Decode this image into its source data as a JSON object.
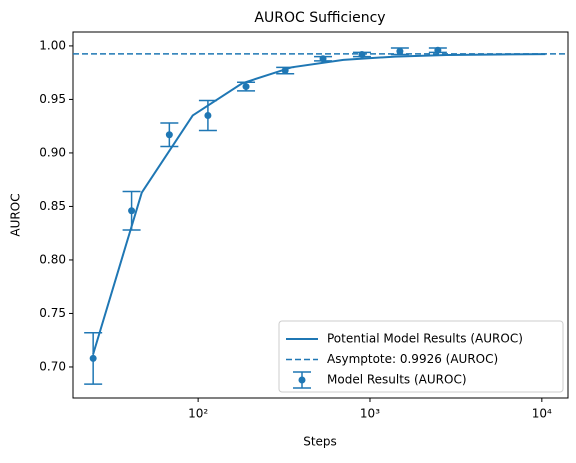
{
  "chart_data": {
    "type": "line",
    "title": "AUROC Sufficiency",
    "x_label": "Steps",
    "y_label": "AUROC",
    "xscale": "log",
    "xlim": [
      18.7,
      14200
    ],
    "ylim": [
      0.671,
      1.013
    ],
    "xticks": [
      {
        "value": 100,
        "label": "10²"
      },
      {
        "value": 1000,
        "label": "10³"
      },
      {
        "value": 10000,
        "label": "10⁴"
      }
    ],
    "yticks": [
      {
        "value": 0.7,
        "label": "0.70"
      },
      {
        "value": 0.75,
        "label": "0.75"
      },
      {
        "value": 0.8,
        "label": "0.80"
      },
      {
        "value": 0.85,
        "label": "0.85"
      },
      {
        "value": 0.9,
        "label": "0.90"
      },
      {
        "value": 0.95,
        "label": "0.95"
      },
      {
        "value": 1.0,
        "label": "1.00"
      }
    ],
    "legend": "lower right",
    "series": [
      {
        "name": "Potential Model Results (AUROC)",
        "color": "#1f77b4",
        "style": "solid",
        "x": [
          24.5,
          47,
          93,
          180,
          350,
          700,
          1400,
          2800,
          5600,
          10500
        ],
        "values": [
          0.712,
          0.863,
          0.935,
          0.965,
          0.98,
          0.987,
          0.99,
          0.9915,
          0.992,
          0.9923
        ]
      },
      {
        "name": "Asymptote: 0.9926 (AUROC)",
        "color": "#1f77b4",
        "style": "dashed",
        "value": 0.9926
      },
      {
        "name": "Model Results (AUROC)",
        "color": "#1f77b4",
        "style": "errorbar",
        "x": [
          24.5,
          41,
          68,
          114,
          190,
          321,
          533,
          898,
          1493,
          2483
        ],
        "values": [
          0.708,
          0.846,
          0.917,
          0.935,
          0.962,
          0.977,
          0.988,
          0.992,
          0.995,
          0.996
        ],
        "errors": [
          0.024,
          0.018,
          0.011,
          0.014,
          0.004,
          0.003,
          0.002,
          0.002,
          0.003,
          0.002
        ]
      }
    ]
  }
}
